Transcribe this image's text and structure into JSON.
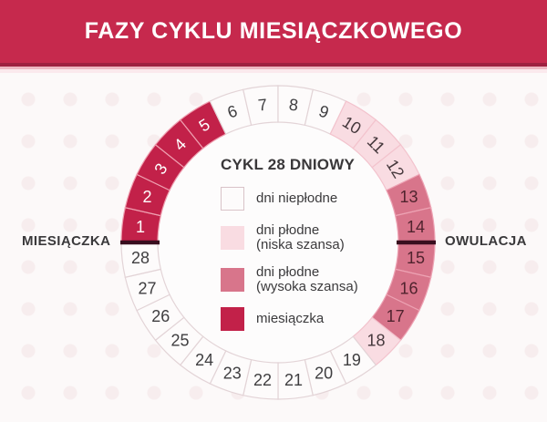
{
  "header": {
    "title": "FAZY CYKLU MIESIĄCZKOWEGO"
  },
  "side_labels": {
    "left": "MIESIĄCZKA",
    "right": "OWULACJA"
  },
  "center": {
    "title": "CYKL 28 DNIOWY"
  },
  "legend": {
    "items": [
      {
        "label": "dni niepłodne",
        "label2": "",
        "phase": "infertile"
      },
      {
        "label": "dni płodne",
        "label2": "(niska szansa)",
        "phase": "fertile_low"
      },
      {
        "label": "dni płodne",
        "label2": "(wysoka szansa)",
        "phase": "fertile_high"
      },
      {
        "label": "miesiączka",
        "label2": "",
        "phase": "menstruation"
      }
    ]
  },
  "colors": {
    "banner": "#c6294d",
    "banner_underline": "#9e2040",
    "marker_line": "#390e1e",
    "phase_styles": {
      "menstruation": {
        "fill": "#c22149",
        "number": "#ffffff",
        "divider": "#ef9fb0",
        "swatch_border": ""
      },
      "infertile": {
        "fill": "#fdfbfb",
        "number": "#3f3e40",
        "divider": "#e3d4d7",
        "swatch_border": "#d9c3c8"
      },
      "fertile_low": {
        "fill": "#f9dce2",
        "number": "#46393d",
        "divider": "#f3c3cd",
        "swatch_border": ""
      },
      "fertile_high": {
        "fill": "#d8758b",
        "number": "#50232e",
        "divider": "#eda2b3",
        "swatch_border": ""
      }
    }
  },
  "cycle": {
    "total_days": 28,
    "days": [
      {
        "day": "1",
        "phase": "menstruation"
      },
      {
        "day": "2",
        "phase": "menstruation"
      },
      {
        "day": "3",
        "phase": "menstruation"
      },
      {
        "day": "4",
        "phase": "menstruation"
      },
      {
        "day": "5",
        "phase": "menstruation"
      },
      {
        "day": "6",
        "phase": "infertile"
      },
      {
        "day": "7",
        "phase": "infertile"
      },
      {
        "day": "8",
        "phase": "infertile"
      },
      {
        "day": "9",
        "phase": "infertile"
      },
      {
        "day": "10",
        "phase": "fertile_low"
      },
      {
        "day": "11",
        "phase": "fertile_low"
      },
      {
        "day": "12",
        "phase": "fertile_low"
      },
      {
        "day": "13",
        "phase": "fertile_high"
      },
      {
        "day": "14",
        "phase": "fertile_high"
      },
      {
        "day": "15",
        "phase": "fertile_high"
      },
      {
        "day": "16",
        "phase": "fertile_high"
      },
      {
        "day": "17",
        "phase": "fertile_high"
      },
      {
        "day": "18",
        "phase": "fertile_low"
      },
      {
        "day": "19",
        "phase": "infertile"
      },
      {
        "day": "20",
        "phase": "infertile"
      },
      {
        "day": "21",
        "phase": "infertile"
      },
      {
        "day": "22",
        "phase": "infertile"
      },
      {
        "day": "23",
        "phase": "infertile"
      },
      {
        "day": "24",
        "phase": "infertile"
      },
      {
        "day": "25",
        "phase": "infertile"
      },
      {
        "day": "26",
        "phase": "infertile"
      },
      {
        "day": "27",
        "phase": "infertile"
      },
      {
        "day": "28",
        "phase": "infertile"
      }
    ],
    "markers": [
      {
        "name": "miesiączka",
        "between_days": [
          28,
          1
        ],
        "position": "left"
      },
      {
        "name": "owulacja",
        "between_days": [
          14,
          15
        ],
        "position": "right"
      }
    ]
  }
}
